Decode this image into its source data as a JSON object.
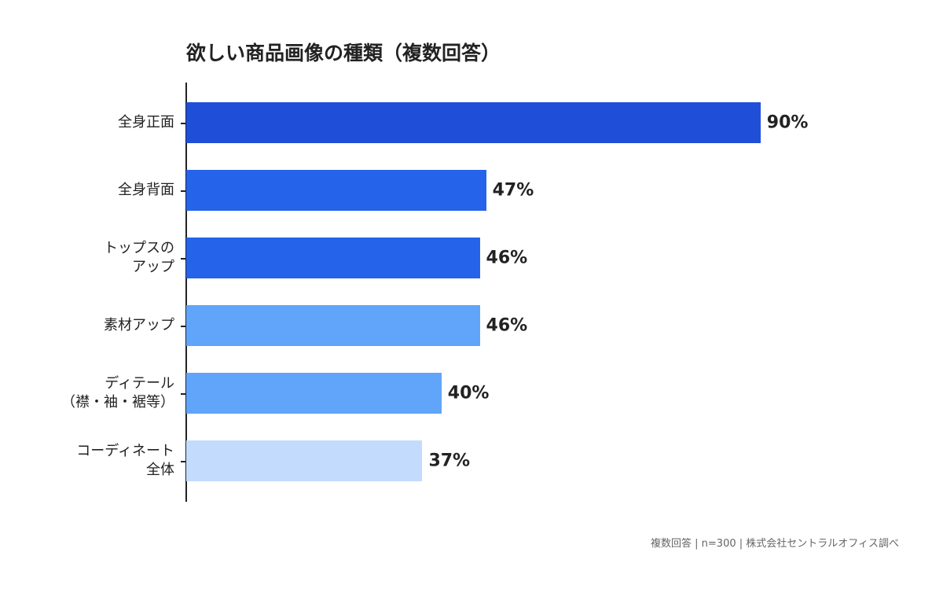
{
  "chart_data": {
    "type": "bar",
    "orientation": "horizontal",
    "title": "欲しい商品画像の種類（複数回答）",
    "categories": [
      "全身正面",
      "全身背面",
      "トップスの\nアップ",
      "素材アップ",
      "ディテール\n（襟・袖・裾等）",
      "コーディネート\n全体"
    ],
    "values": [
      90,
      47,
      46,
      46,
      40,
      37
    ],
    "value_labels": [
      "90%",
      "47%",
      "46%",
      "46%",
      "40%",
      "37%"
    ],
    "colors": [
      "#1f4fd8",
      "#2563eb",
      "#2563eb",
      "#60a5fa",
      "#60a5fa",
      "#c3dcfd"
    ],
    "note": "複数回答 | n=300 | 株式会社セントラルオフィス調べ"
  }
}
